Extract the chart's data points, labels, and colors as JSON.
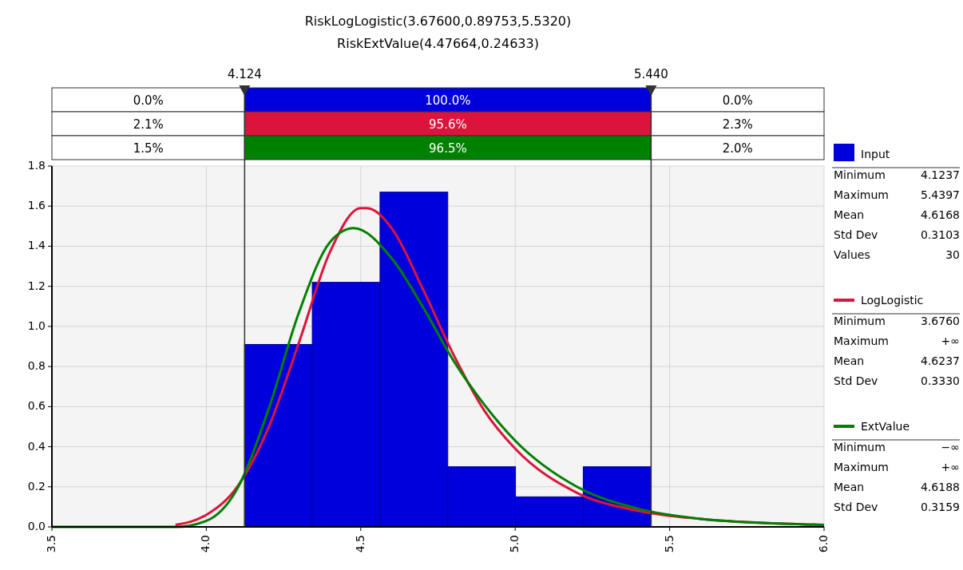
{
  "chart_data": {
    "type": "histogram",
    "title": "RiskLogLogistic(3.67600,0.89753,5.5320)",
    "subtitle": "RiskExtValue(4.47664,0.24633)",
    "series": [
      {
        "name": "Input",
        "color": "#0000dd",
        "bins": [
          4.1237,
          4.343,
          4.5623,
          4.7817,
          5.001,
          5.2203,
          5.4397
        ],
        "values": [
          0.91,
          1.22,
          1.67,
          0.3,
          0.15,
          0.3
        ]
      },
      {
        "name": "LogLogistic",
        "type": "line",
        "color": "#dc143c",
        "x": [
          3.9,
          4.0,
          4.1,
          4.2,
          4.3,
          4.4,
          4.5,
          4.52,
          4.6,
          4.7,
          4.8,
          4.9,
          5.0,
          5.2,
          5.4,
          5.6,
          5.8,
          6.0
        ],
        "values": [
          0.01,
          0.06,
          0.2,
          0.49,
          0.92,
          1.37,
          1.59,
          1.59,
          1.49,
          1.19,
          0.86,
          0.58,
          0.39,
          0.17,
          0.08,
          0.04,
          0.02,
          0.01
        ]
      },
      {
        "name": "ExtValue",
        "type": "line",
        "color": "#008000",
        "x": [
          3.5,
          3.8,
          3.9,
          4.0,
          4.1,
          4.2,
          4.3,
          4.4,
          4.477,
          4.6,
          4.7,
          4.8,
          4.9,
          5.0,
          5.2,
          5.4,
          5.6,
          5.8,
          6.0
        ],
        "values": [
          0,
          0,
          0.0,
          0.03,
          0.19,
          0.58,
          1.07,
          1.42,
          1.49,
          1.34,
          1.1,
          0.83,
          0.61,
          0.43,
          0.2,
          0.09,
          0.04,
          0.02,
          0.01
        ]
      }
    ],
    "xlim": [
      3.5,
      6.0
    ],
    "ylim": [
      0,
      1.8
    ],
    "xticks": [
      3.5,
      {
        "value": 4,
        "label": "4.0"
      },
      4.5,
      {
        "value": 5,
        "label": "5.0"
      },
      5.5,
      {
        "value": 6,
        "label": "6.0"
      }
    ],
    "yticks": [
      {
        "value": 0,
        "label": "0.0"
      },
      0.2,
      0.4,
      0.6,
      0.8,
      {
        "value": 1,
        "label": "1.0"
      },
      1.2,
      1.4,
      1.6,
      1.8
    ],
    "ref_lines": [
      {
        "axis": "x",
        "value": 4.124,
        "label": "4.124"
      },
      {
        "axis": "x",
        "value": 5.44,
        "label": "5.440"
      }
    ],
    "annotations": [
      "0.0%",
      "100.0%",
      "0.0%",
      "2.1%",
      "95.6%",
      "2.3%",
      "1.5%",
      "96.5%",
      "2.0%",
      "Minimum 4.1237\nMaximum 5.4397\nMean 4.6168\nStd Dev 0.3103\nValues 30",
      "Minimum 3.6760\nMaximum +∞\nMean 4.6237\nStd Dev 0.3330",
      "Minimum −∞\nMaximum +∞\nMean 4.6188\nStd Dev 0.3159"
    ],
    "grid": true,
    "legend": "right",
    "marker": "none",
    "line_style": "solid"
  }
}
